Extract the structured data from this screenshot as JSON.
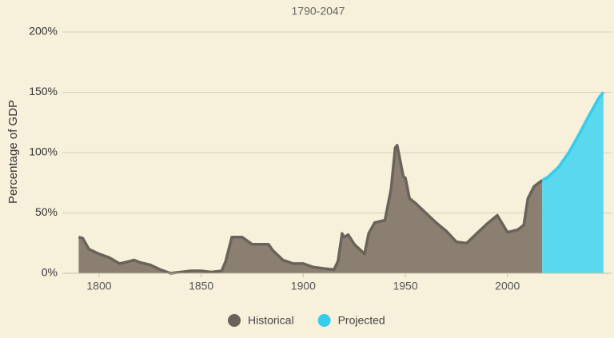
{
  "chart_data": {
    "type": "area",
    "subtitle": "1790-2047",
    "ylabel": "Percentage of GDP",
    "xlim": [
      1782,
      2051
    ],
    "xticks": [
      1800,
      1850,
      1900,
      1950,
      2000
    ],
    "ylim": [
      0,
      200
    ],
    "yticks": [
      {
        "value": 0,
        "label": "0%"
      },
      {
        "value": 50,
        "label": "50%"
      },
      {
        "value": 100,
        "label": "100%"
      },
      {
        "value": 150,
        "label": "150%"
      },
      {
        "value": 200,
        "label": "200%"
      }
    ],
    "grid": true,
    "legend": "bottom",
    "series": [
      {
        "name": "Historical",
        "color": "#6b635a",
        "fill": "#8a7f71",
        "x": [
          1790,
          1792,
          1795,
          1800,
          1805,
          1810,
          1815,
          1817,
          1820,
          1825,
          1830,
          1835,
          1840,
          1845,
          1850,
          1855,
          1860,
          1862,
          1865,
          1870,
          1875,
          1880,
          1883,
          1885,
          1890,
          1895,
          1900,
          1905,
          1910,
          1915,
          1917,
          1919,
          1920,
          1922,
          1925,
          1930,
          1932,
          1935,
          1940,
          1943,
          1945,
          1946,
          1949,
          1950,
          1952,
          1955,
          1960,
          1965,
          1970,
          1975,
          1980,
          1985,
          1990,
          1995,
          2000,
          2005,
          2008,
          2010,
          2013,
          2017
        ],
        "values": [
          30,
          29,
          20,
          16,
          13,
          8,
          10,
          11,
          9,
          7,
          3,
          0,
          1,
          2,
          2,
          1,
          2,
          10,
          30,
          30,
          24,
          24,
          24,
          19,
          11,
          8,
          8,
          5,
          4,
          3,
          10,
          33,
          30,
          32,
          24,
          16,
          33,
          42,
          44,
          70,
          104,
          106,
          80,
          79,
          62,
          58,
          50,
          42,
          35,
          26,
          25,
          33,
          41,
          48,
          34,
          36,
          40,
          62,
          72,
          77
        ]
      },
      {
        "name": "Projected",
        "color": "#36ccec",
        "fill": "#5ad8ee",
        "x": [
          2017,
          2020,
          2025,
          2030,
          2035,
          2040,
          2045,
          2047
        ],
        "values": [
          77,
          80,
          88,
          100,
          115,
          131,
          146,
          150
        ]
      }
    ]
  }
}
